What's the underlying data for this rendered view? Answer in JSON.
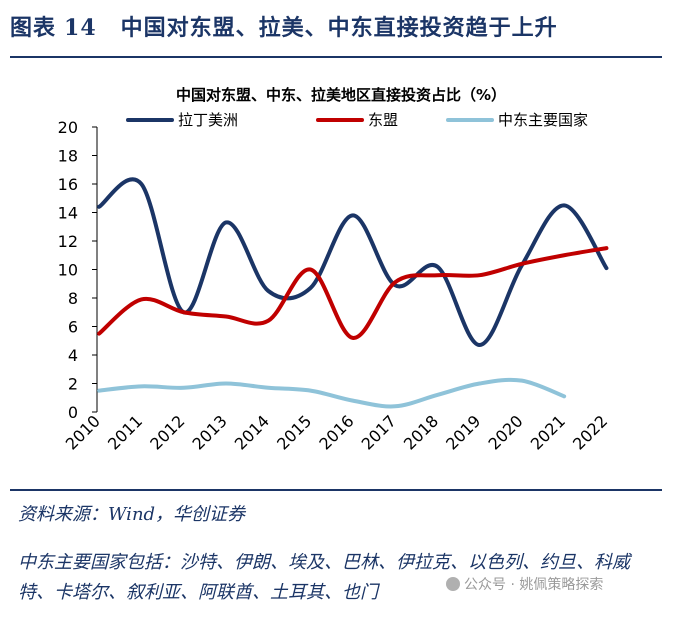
{
  "header": {
    "label": "图表",
    "number": "14",
    "title": "中国对东盟、拉美、中东直接投资趋于上升"
  },
  "chart_data": {
    "type": "line",
    "title": "中国对东盟、中东、拉美地区直接投资占比（%）",
    "xlabel": "",
    "ylabel": "",
    "categories": [
      "2010",
      "2011",
      "2012",
      "2013",
      "2014",
      "2015",
      "2016",
      "2017",
      "2018",
      "2019",
      "2020",
      "2021",
      "2022"
    ],
    "ylim": [
      0,
      20
    ],
    "yticks": [
      0,
      2,
      4,
      6,
      8,
      10,
      12,
      14,
      16,
      18,
      20
    ],
    "legend_position": "top",
    "series": [
      {
        "name": "拉丁美洲",
        "color": "#1b3566",
        "values": [
          14.4,
          16.0,
          7.0,
          13.3,
          8.5,
          8.7,
          13.8,
          8.9,
          10.2,
          4.7,
          10.3,
          14.5,
          10.1
        ]
      },
      {
        "name": "东盟",
        "color": "#c00000",
        "values": [
          5.5,
          7.9,
          7.0,
          6.7,
          6.4,
          10.0,
          5.2,
          9.1,
          9.6,
          9.6,
          10.4,
          11.0,
          11.5
        ]
      },
      {
        "name": "中东主要国家",
        "color": "#8fc3d9",
        "values": [
          1.5,
          1.8,
          1.7,
          2.0,
          1.7,
          1.5,
          0.8,
          0.4,
          1.2,
          2.0,
          2.2,
          1.1,
          null
        ]
      }
    ]
  },
  "footer": {
    "source": "资料来源：Wind，华创证券",
    "countries": "中东主要国家包括：沙特、伊朗、埃及、巴林、伊拉克、以色列、约旦、科威特、卡塔尔、叙利亚、阿联酋、土耳其、也门",
    "watermark": "公众号 · 姚佩策略探索"
  }
}
